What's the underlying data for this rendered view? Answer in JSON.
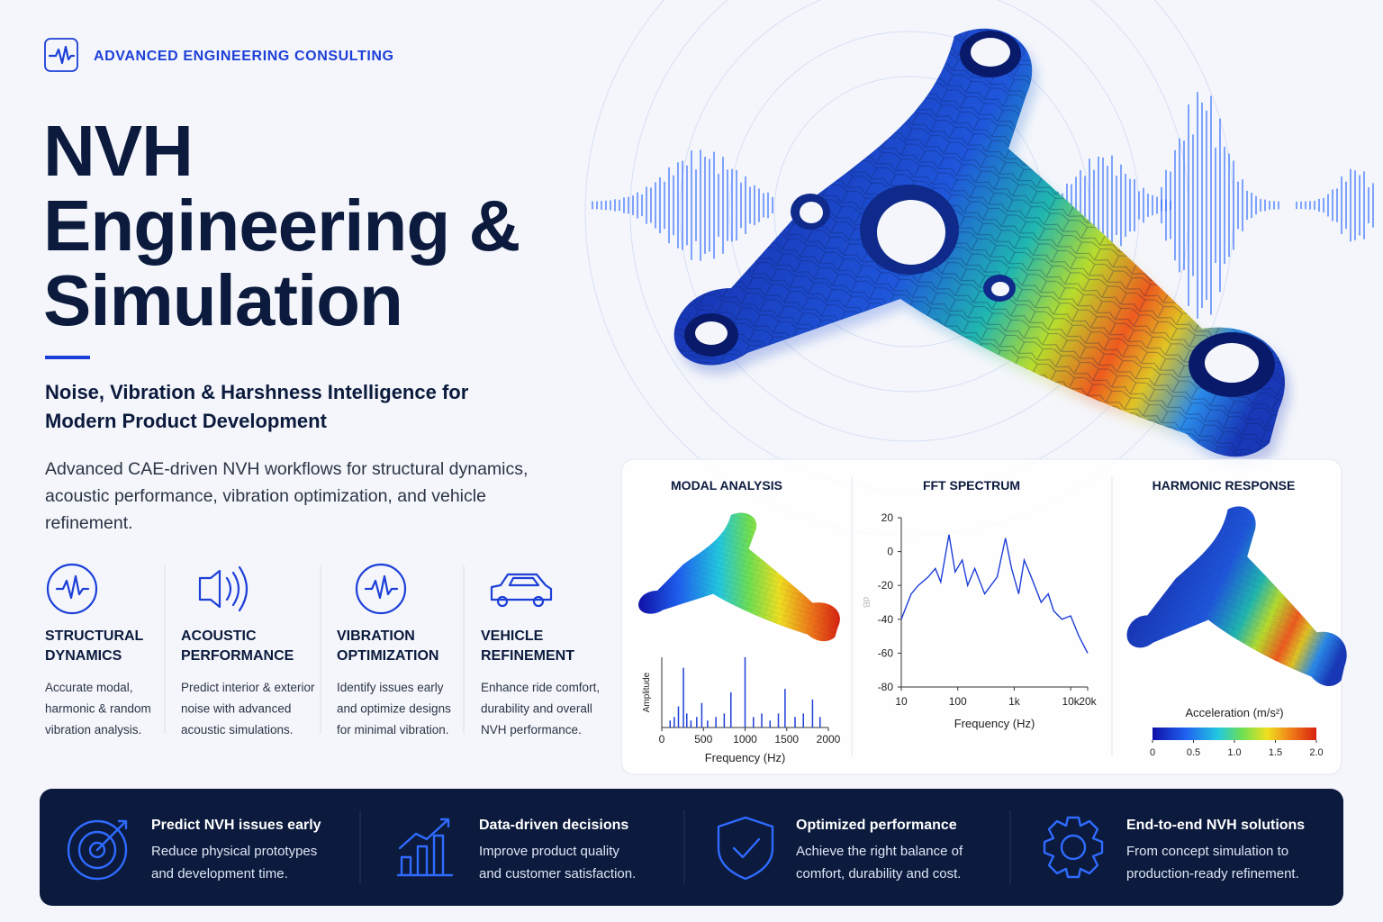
{
  "header": {
    "brand": "ADVANCED ENGINEERING CONSULTING",
    "title_lines": [
      "NVH",
      "Engineering &",
      "Simulation"
    ],
    "subtitle_lines": [
      "Noise, Vibration & Harshness Intelligence for",
      "Modern Product Development"
    ],
    "description_lines": [
      "Advanced CAE-driven NVH workflows for structural dynamics,",
      "acoustic performance, vibration optimization, and vehicle",
      "refinement."
    ]
  },
  "features": [
    {
      "title_lines": [
        "STRUCTURAL",
        "DYNAMICS"
      ],
      "text_lines": [
        "Accurate modal,",
        "harmonic & random",
        "vibration analysis."
      ]
    },
    {
      "title_lines": [
        "ACOUSTIC",
        "PERFORMANCE"
      ],
      "text_lines": [
        "Predict interior & exterior",
        "noise with advanced",
        "acoustic simulations."
      ]
    },
    {
      "title_lines": [
        "VIBRATION",
        "OPTIMIZATION"
      ],
      "text_lines": [
        "Identify issues early",
        "and optimize designs",
        "for minimal vibration."
      ]
    },
    {
      "title_lines": [
        "VEHICLE",
        "REFINEMENT"
      ],
      "text_lines": [
        "Enhance ride comfort,",
        "durability and overall",
        "NVH performance."
      ]
    }
  ],
  "chart_data": [
    {
      "type": "stem",
      "title": "MODAL ANALYSIS",
      "x_label": "Frequency (Hz)",
      "y_label": "Amplitude",
      "x": [
        100,
        150,
        200,
        260,
        300,
        350,
        420,
        480,
        550,
        650,
        750,
        830,
        1000,
        1100,
        1200,
        1300,
        1400,
        1480,
        1600,
        1700,
        1810,
        1900
      ],
      "values": [
        0.1,
        0.15,
        0.3,
        0.85,
        0.2,
        0.1,
        0.15,
        0.35,
        0.1,
        0.15,
        0.2,
        0.5,
        1.0,
        0.15,
        0.2,
        0.1,
        0.2,
        0.55,
        0.15,
        0.2,
        0.4,
        0.15
      ],
      "xlim": [
        0,
        2000
      ],
      "xticks": [
        0,
        500,
        1000,
        1500,
        2000
      ],
      "ylim": [
        0,
        1
      ],
      "color": "#1d3fd8"
    },
    {
      "type": "line",
      "title": "FFT SPECTRUM",
      "x_label": "Frequency (Hz)",
      "y_label": "dB",
      "log_x": true,
      "x": [
        10,
        15,
        20,
        30,
        40,
        50,
        70,
        90,
        120,
        150,
        200,
        300,
        500,
        700,
        900,
        1200,
        1500,
        2000,
        3000,
        4000,
        5000,
        7000,
        10000,
        14000,
        20000
      ],
      "values": [
        -40,
        -25,
        -20,
        -15,
        -10,
        -18,
        10,
        -12,
        -5,
        -20,
        -10,
        -25,
        -15,
        8,
        -10,
        -25,
        -5,
        -15,
        -30,
        -25,
        -35,
        -40,
        -38,
        -50,
        -60
      ],
      "xlim": [
        10,
        20000
      ],
      "xticks": [
        10,
        100,
        {
          "value": 1000,
          "label": "1k"
        },
        {
          "value": 10000,
          "label": "10k"
        },
        {
          "value": 20000,
          "label": "20k"
        }
      ],
      "ylim": [
        -80,
        20
      ],
      "yticks": [
        20,
        0,
        -20,
        -40,
        -60,
        -80
      ],
      "color": "#1d3fd8"
    },
    {
      "type": "colorbar",
      "title": "HARMONIC RESPONSE",
      "label": "Acceleration (m/s²)",
      "xlim": [
        0,
        2
      ],
      "xticks": [
        0,
        0.5,
        {
          "value": 1,
          "label": "1.0"
        },
        1.5,
        {
          "value": 2,
          "label": "2.0"
        }
      ]
    }
  ],
  "benefits": [
    {
      "title": "Predict NVH issues early",
      "text_lines": [
        "Reduce physical prototypes",
        "and development time."
      ]
    },
    {
      "title": "Data-driven decisions",
      "text_lines": [
        "Improve product quality",
        "and customer satisfaction."
      ]
    },
    {
      "title": "Optimized performance",
      "text_lines": [
        "Achieve the right balance of",
        "comfort, durability and cost."
      ]
    },
    {
      "title": "End-to-end NVH solutions",
      "text_lines": [
        "From concept simulation to",
        "production-ready refinement."
      ]
    }
  ]
}
